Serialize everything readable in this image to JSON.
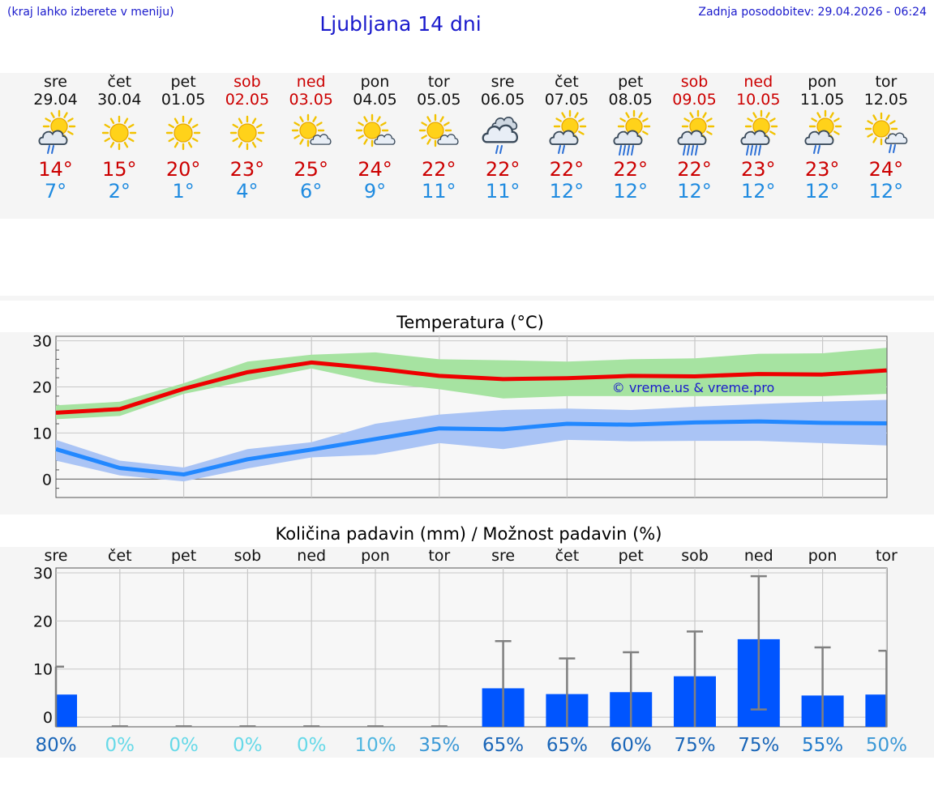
{
  "header": {
    "hint": "(kraj lahko izberete v meniju)",
    "title": "Ljubljana 14 dni",
    "updated": "Zadnja posodobitev: 29.04.2026 - 06:24"
  },
  "days": [
    {
      "name": "sre",
      "date": "29.04",
      "weekend": false,
      "icon": "sun-cloud-rain-icon",
      "tmax": "14°",
      "tmin": "7°"
    },
    {
      "name": "čet",
      "date": "30.04",
      "weekend": false,
      "icon": "sun-icon",
      "tmax": "15°",
      "tmin": "2°"
    },
    {
      "name": "pet",
      "date": "01.05",
      "weekend": false,
      "icon": "sun-icon",
      "tmax": "20°",
      "tmin": "1°"
    },
    {
      "name": "sob",
      "date": "02.05",
      "weekend": true,
      "icon": "sun-icon",
      "tmax": "23°",
      "tmin": "4°"
    },
    {
      "name": "ned",
      "date": "03.05",
      "weekend": true,
      "icon": "sun-small-cloud-icon",
      "tmax": "25°",
      "tmin": "6°"
    },
    {
      "name": "pon",
      "date": "04.05",
      "weekend": false,
      "icon": "sun-small-cloud-icon",
      "tmax": "24°",
      "tmin": "9°"
    },
    {
      "name": "tor",
      "date": "05.05",
      "weekend": false,
      "icon": "sun-small-cloud-icon",
      "tmax": "22°",
      "tmin": "11°"
    },
    {
      "name": "sre",
      "date": "06.05",
      "weekend": false,
      "icon": "cloud-rain-icon",
      "tmax": "22°",
      "tmin": "11°"
    },
    {
      "name": "čet",
      "date": "07.05",
      "weekend": false,
      "icon": "sun-cloud-rain-icon",
      "tmax": "22°",
      "tmin": "12°"
    },
    {
      "name": "pet",
      "date": "08.05",
      "weekend": false,
      "icon": "sun-cloud-heavy-rain-icon",
      "tmax": "22°",
      "tmin": "12°"
    },
    {
      "name": "sob",
      "date": "09.05",
      "weekend": true,
      "icon": "sun-cloud-heavy-rain-icon",
      "tmax": "22°",
      "tmin": "12°"
    },
    {
      "name": "ned",
      "date": "10.05",
      "weekend": true,
      "icon": "sun-cloud-heavy-rain-icon",
      "tmax": "23°",
      "tmin": "12°"
    },
    {
      "name": "pon",
      "date": "11.05",
      "weekend": false,
      "icon": "sun-cloud-rain-icon",
      "tmax": "23°",
      "tmin": "12°"
    },
    {
      "name": "tor",
      "date": "12.05",
      "weekend": false,
      "icon": "sun-small-cloud-rain-icon",
      "tmax": "24°",
      "tmin": "12°"
    }
  ],
  "colors": {
    "max_line": "#ee0000",
    "max_band": "#a6e3a1",
    "min_line": "#2288ff",
    "min_band": "#aac4f5",
    "precip_bar": "#0055ff",
    "error_bar": "#808080",
    "weekend_text": "#cc0000",
    "title_blue": "#1a1acc"
  },
  "chart_data": [
    {
      "type": "line",
      "title": "Temperatura (°C)",
      "watermark": "© vreme.us & vreme.pro",
      "ylim": [
        -4,
        31
      ],
      "yticks": [
        0,
        10,
        20,
        30
      ],
      "x_days": [
        0,
        1,
        2,
        3,
        4,
        5,
        6,
        7,
        8,
        9,
        10,
        11,
        12,
        13
      ],
      "series": [
        {
          "name": "max",
          "values": [
            14.4,
            15.2,
            19.6,
            23.2,
            25.3,
            24.0,
            22.4,
            21.7,
            21.9,
            22.4,
            22.3,
            22.8,
            22.7,
            23.6
          ],
          "band_low": [
            13.0,
            13.7,
            18.5,
            21.3,
            24.0,
            21.0,
            19.5,
            17.5,
            18.0,
            18.0,
            18.0,
            18.0,
            18.0,
            18.5
          ],
          "band_high": [
            16.0,
            16.8,
            20.8,
            25.5,
            27.0,
            27.5,
            26.0,
            25.8,
            25.5,
            26.0,
            26.2,
            27.2,
            27.3,
            28.5
          ]
        },
        {
          "name": "min",
          "values": [
            6.5,
            2.4,
            1.0,
            4.3,
            6.4,
            8.7,
            11.0,
            10.8,
            12.0,
            11.8,
            12.3,
            12.5,
            12.2,
            12.1
          ],
          "band_low": [
            4.0,
            0.8,
            -0.5,
            2.3,
            4.7,
            5.3,
            7.8,
            6.5,
            8.5,
            8.2,
            8.3,
            8.3,
            7.8,
            7.3
          ],
          "band_high": [
            8.5,
            4.0,
            2.5,
            6.5,
            8.0,
            12.0,
            14.0,
            15.0,
            15.3,
            15.0,
            15.7,
            16.3,
            16.8,
            17.2
          ]
        }
      ]
    },
    {
      "type": "bar",
      "title": "Količina padavin (mm) / Možnost padavin (%)",
      "ylim": [
        -2,
        31
      ],
      "yticks": [
        0,
        10,
        20,
        30
      ],
      "categories": [
        "sre",
        "čet",
        "pet",
        "sob",
        "ned",
        "pon",
        "tor",
        "sre",
        "čet",
        "pet",
        "sob",
        "ned",
        "pon",
        "tor"
      ],
      "values": [
        4.7,
        0,
        0,
        0,
        0,
        0,
        0,
        6.0,
        4.8,
        5.2,
        8.5,
        16.2,
        4.5,
        4.7
      ],
      "error_high": [
        10.5,
        0,
        0,
        0,
        0,
        0,
        0,
        15.8,
        12.2,
        13.5,
        17.8,
        29.3,
        14.5,
        13.8
      ],
      "error_low": [
        0,
        0,
        0,
        0,
        0,
        0,
        0,
        0,
        0,
        0,
        0,
        1.6,
        0,
        0
      ],
      "chance": [
        "80%",
        "0%",
        "0%",
        "0%",
        "0%",
        "10%",
        "35%",
        "65%",
        "65%",
        "60%",
        "75%",
        "75%",
        "55%",
        "50%"
      ],
      "chance_colors": [
        "#1a66b8",
        "#66d9e8",
        "#66d9e8",
        "#66d9e8",
        "#66d9e8",
        "#4fb6e0",
        "#3a98d6",
        "#1a66b8",
        "#1a66b8",
        "#1a66b8",
        "#1a66b8",
        "#1a66b8",
        "#1f7acb",
        "#3a98d6"
      ]
    }
  ]
}
